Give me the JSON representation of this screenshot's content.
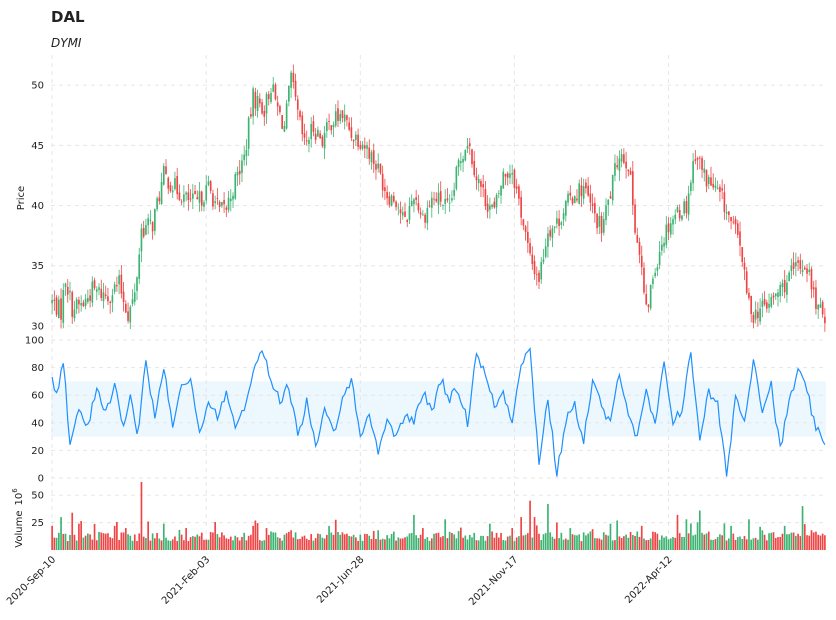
{
  "chart_data": {
    "type": "candlestick",
    "title": "DAL",
    "subtitle": "DYMI",
    "colors": {
      "up": "#3cb371",
      "down": "#ef4444",
      "dymi": "#1e90ff",
      "band": "#e0f2fe"
    },
    "price_panel": {
      "ylabel": "Price",
      "ylim": [
        29,
        52.5
      ],
      "yticks": [
        30,
        35,
        40,
        45,
        50
      ],
      "anchors": [
        [
          0,
          32.0
        ],
        [
          4,
          31.2
        ],
        [
          6,
          34.0
        ],
        [
          9,
          31.5
        ],
        [
          14,
          31.8
        ],
        [
          18,
          33.0
        ],
        [
          25,
          32.5
        ],
        [
          30,
          33.5
        ],
        [
          34,
          31.0
        ],
        [
          37,
          32.5
        ],
        [
          40,
          38.0
        ],
        [
          45,
          38.5
        ],
        [
          50,
          42.5
        ],
        [
          55,
          41.5
        ],
        [
          60,
          40.5
        ],
        [
          65,
          40.2
        ],
        [
          70,
          41.5
        ],
        [
          75,
          39.5
        ],
        [
          78,
          39.8
        ],
        [
          82,
          42.0
        ],
        [
          86,
          44.0
        ],
        [
          90,
          49.0
        ],
        [
          95,
          48.0
        ],
        [
          98,
          50.0
        ],
        [
          101,
          48.0
        ],
        [
          104,
          46.5
        ],
        [
          107,
          50.5
        ],
        [
          110,
          47.5
        ],
        [
          113,
          45.0
        ],
        [
          117,
          46.5
        ],
        [
          121,
          45.5
        ],
        [
          125,
          47.0
        ],
        [
          130,
          47.5
        ],
        [
          134,
          46.0
        ],
        [
          138,
          45.5
        ],
        [
          142,
          44.5
        ],
        [
          146,
          43.0
        ],
        [
          150,
          41.0
        ],
        [
          154,
          40.5
        ],
        [
          158,
          38.5
        ],
        [
          162,
          41.0
        ],
        [
          166,
          39.0
        ],
        [
          170,
          40.5
        ],
        [
          174,
          40.5
        ],
        [
          178,
          39.5
        ],
        [
          182,
          43.5
        ],
        [
          186,
          45.5
        ],
        [
          190,
          42.5
        ],
        [
          194,
          40.5
        ],
        [
          198,
          39.5
        ],
        [
          202,
          42.5
        ],
        [
          206,
          43.0
        ],
        [
          210,
          39.5
        ],
        [
          214,
          35.5
        ],
        [
          218,
          34.0
        ],
        [
          222,
          38.0
        ],
        [
          226,
          38.5
        ],
        [
          230,
          40.0
        ],
        [
          234,
          41.0
        ],
        [
          238,
          41.5
        ],
        [
          242,
          39.5
        ],
        [
          246,
          38.0
        ],
        [
          250,
          41.0
        ],
        [
          254,
          44.5
        ],
        [
          258,
          43.5
        ],
        [
          261,
          38.5
        ],
        [
          264,
          34.5
        ],
        [
          266,
          31.0
        ],
        [
          269,
          34.0
        ],
        [
          272,
          36.5
        ],
        [
          276,
          38.5
        ],
        [
          280,
          39.5
        ],
        [
          284,
          40.0
        ],
        [
          288,
          44.5
        ],
        [
          292,
          42.5
        ],
        [
          296,
          41.5
        ],
        [
          300,
          40.5
        ],
        [
          304,
          38.5
        ],
        [
          308,
          37.0
        ],
        [
          311,
          32.5
        ],
        [
          314,
          31.0
        ],
        [
          318,
          31.5
        ],
        [
          322,
          32.0
        ],
        [
          326,
          33.0
        ],
        [
          330,
          34.0
        ],
        [
          334,
          35.0
        ],
        [
          338,
          35.0
        ],
        [
          341,
          32.5
        ],
        [
          344,
          31.0
        ]
      ]
    },
    "dymi_panel": {
      "ylim": [
        0,
        100
      ],
      "yticks": [
        0,
        20,
        40,
        60,
        80,
        100
      ],
      "band": [
        30,
        70
      ],
      "anchors": [
        [
          0,
          70
        ],
        [
          2,
          62
        ],
        [
          5,
          85
        ],
        [
          8,
          25
        ],
        [
          12,
          48
        ],
        [
          16,
          40
        ],
        [
          20,
          62
        ],
        [
          24,
          48
        ],
        [
          28,
          68
        ],
        [
          32,
          35
        ],
        [
          35,
          60
        ],
        [
          38,
          28
        ],
        [
          42,
          88
        ],
        [
          46,
          42
        ],
        [
          50,
          80
        ],
        [
          54,
          40
        ],
        [
          58,
          70
        ],
        [
          62,
          72
        ],
        [
          66,
          30
        ],
        [
          70,
          55
        ],
        [
          74,
          45
        ],
        [
          78,
          62
        ],
        [
          82,
          40
        ],
        [
          86,
          52
        ],
        [
          90,
          75
        ],
        [
          94,
          96
        ],
        [
          98,
          70
        ],
        [
          102,
          55
        ],
        [
          106,
          68
        ],
        [
          110,
          30
        ],
        [
          114,
          55
        ],
        [
          118,
          22
        ],
        [
          122,
          48
        ],
        [
          126,
          32
        ],
        [
          130,
          60
        ],
        [
          134,
          72
        ],
        [
          138,
          28
        ],
        [
          142,
          48
        ],
        [
          146,
          18
        ],
        [
          150,
          45
        ],
        [
          154,
          28
        ],
        [
          158,
          48
        ],
        [
          162,
          40
        ],
        [
          166,
          62
        ],
        [
          170,
          48
        ],
        [
          174,
          72
        ],
        [
          178,
          58
        ],
        [
          182,
          64
        ],
        [
          186,
          40
        ],
        [
          190,
          92
        ],
        [
          194,
          74
        ],
        [
          198,
          52
        ],
        [
          202,
          62
        ],
        [
          206,
          42
        ],
        [
          210,
          85
        ],
        [
          214,
          92
        ],
        [
          218,
          12
        ],
        [
          222,
          58
        ],
        [
          226,
          2
        ],
        [
          230,
          42
        ],
        [
          234,
          52
        ],
        [
          238,
          28
        ],
        [
          242,
          70
        ],
        [
          246,
          52
        ],
        [
          250,
          38
        ],
        [
          254,
          78
        ],
        [
          258,
          48
        ],
        [
          262,
          28
        ],
        [
          266,
          62
        ],
        [
          270,
          38
        ],
        [
          274,
          82
        ],
        [
          278,
          42
        ],
        [
          282,
          50
        ],
        [
          286,
          90
        ],
        [
          290,
          30
        ],
        [
          294,
          62
        ],
        [
          298,
          52
        ],
        [
          302,
          2
        ],
        [
          306,
          60
        ],
        [
          310,
          40
        ],
        [
          314,
          88
        ],
        [
          318,
          50
        ],
        [
          322,
          68
        ],
        [
          326,
          20
        ],
        [
          330,
          55
        ],
        [
          334,
          78
        ],
        [
          338,
          62
        ],
        [
          341,
          42
        ],
        [
          344,
          28
        ],
        [
          346,
          22
        ]
      ]
    },
    "volume_panel": {
      "ylabel": "Volume",
      "exponent_label": "10",
      "exponent": "6",
      "ylim": [
        0,
        62
      ],
      "yticks": [
        25,
        50
      ],
      "base": 8,
      "spikes": [
        [
          0,
          22
        ],
        [
          4,
          30
        ],
        [
          9,
          34
        ],
        [
          12,
          24
        ],
        [
          28,
          22
        ],
        [
          33,
          20
        ],
        [
          40,
          62
        ],
        [
          43,
          26
        ],
        [
          50,
          24
        ],
        [
          60,
          20
        ],
        [
          72,
          16
        ],
        [
          90,
          22
        ],
        [
          96,
          20
        ],
        [
          107,
          18
        ],
        [
          124,
          22
        ],
        [
          138,
          14
        ],
        [
          146,
          18
        ],
        [
          162,
          32
        ],
        [
          166,
          20
        ],
        [
          176,
          28
        ],
        [
          196,
          24
        ],
        [
          206,
          20
        ],
        [
          210,
          30
        ],
        [
          214,
          45
        ],
        [
          216,
          30
        ],
        [
          222,
          42
        ],
        [
          226,
          25
        ],
        [
          232,
          20
        ],
        [
          250,
          24
        ],
        [
          264,
          22
        ],
        [
          280,
          32
        ],
        [
          284,
          28
        ],
        [
          290,
          36
        ],
        [
          304,
          22
        ],
        [
          312,
          28
        ],
        [
          318,
          18
        ],
        [
          328,
          22
        ],
        [
          336,
          40
        ],
        [
          340,
          18
        ]
      ]
    },
    "x_axis": {
      "n_bars": 347,
      "tick_indices": [
        0,
        69,
        138,
        207,
        276
      ],
      "tick_labels": [
        "2020-Sep-10",
        "2021-Feb-03",
        "2021-Jun-28",
        "2021-Nov-17",
        "2022-Apr-12"
      ]
    }
  }
}
